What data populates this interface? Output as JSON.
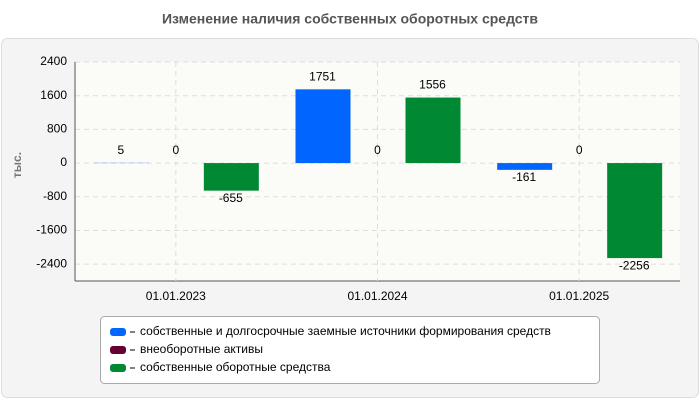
{
  "chart_data": {
    "type": "bar",
    "title": "Изменение наличия собственных оборотных средств",
    "y_label": "тыс.",
    "categories": [
      "01.01.2023",
      "01.01.2024",
      "01.01.2025"
    ],
    "series": [
      {
        "name": "собственные и долгосрочные заемные источники формирования средств",
        "color": "#0066ff",
        "values": [
          5,
          1751,
          -161
        ]
      },
      {
        "name": "внеоборотные активы",
        "color": "#660033",
        "values": [
          0,
          0,
          0
        ]
      },
      {
        "name": "собственные оборотные средства",
        "color": "#008833",
        "values": [
          -655,
          1556,
          -2256
        ]
      }
    ],
    "ylim": [
      -2800,
      2400
    ],
    "yticks": [
      -2400,
      -1600,
      -800,
      0,
      800,
      1600,
      2400
    ],
    "grid": true
  }
}
